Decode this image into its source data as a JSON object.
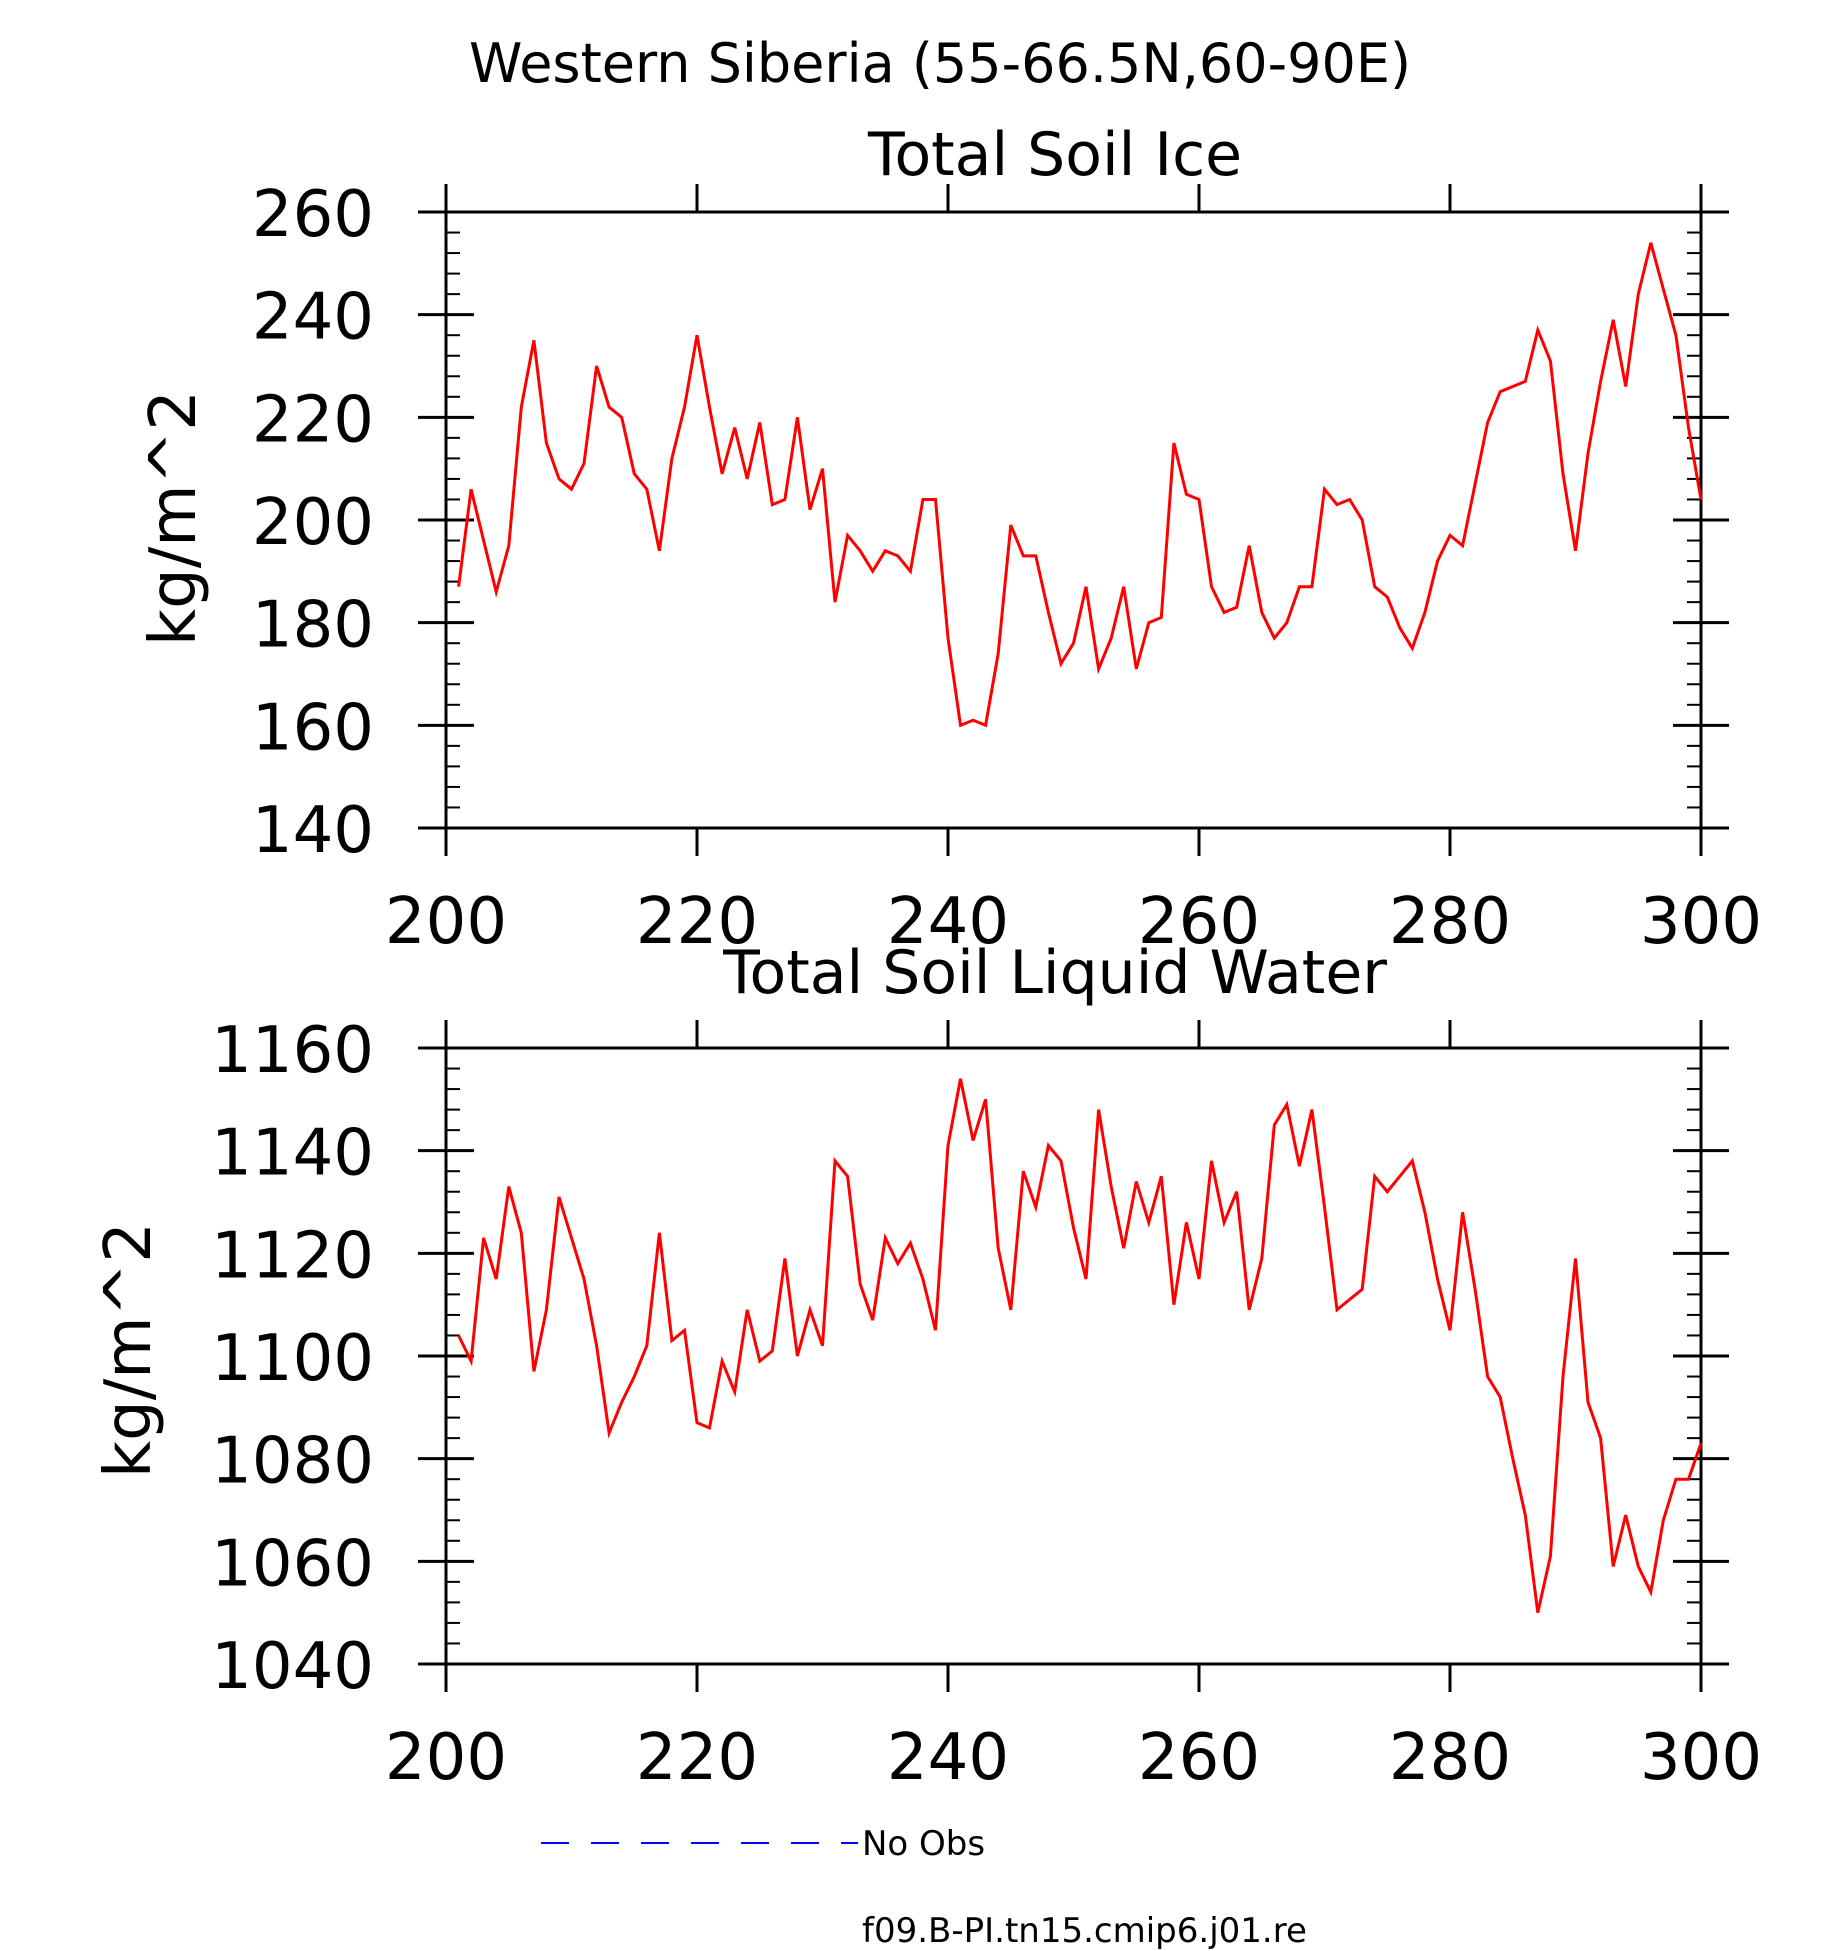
{
  "figure": {
    "title": "Western Siberia (55-66.5N,60-90E)"
  },
  "legend": {
    "entries": [
      {
        "label": "No Obs",
        "color": "#0000ff",
        "style": "dashed"
      },
      {
        "label": "f09.B-PI.tn15.cmip6.j01.re",
        "color": "#ff0000",
        "style": "solid"
      }
    ]
  },
  "chart_data": [
    {
      "type": "line",
      "title": "Total Soil Ice",
      "xlabel": "",
      "ylabel": "kg/m^2",
      "xlim": [
        200,
        300
      ],
      "ylim": [
        140,
        260
      ],
      "xticks": [
        200,
        220,
        240,
        260,
        280,
        300
      ],
      "yticks": [
        140,
        160,
        180,
        200,
        220,
        240,
        260
      ],
      "grid": false,
      "series": [
        {
          "name": "f09.B-PI.tn15.cmip6.j01.re",
          "color": "#ff0000",
          "x": [
            201,
            202,
            203,
            204,
            205,
            206,
            207,
            208,
            209,
            210,
            211,
            212,
            213,
            214,
            215,
            216,
            217,
            218,
            219,
            220,
            221,
            222,
            223,
            224,
            225,
            226,
            227,
            228,
            229,
            230,
            231,
            232,
            233,
            234,
            235,
            236,
            237,
            238,
            239,
            240,
            241,
            242,
            243,
            244,
            245,
            246,
            247,
            248,
            249,
            250,
            251,
            252,
            253,
            254,
            255,
            256,
            257,
            258,
            259,
            260,
            261,
            262,
            263,
            264,
            265,
            266,
            267,
            268,
            269,
            270,
            271,
            272,
            273,
            274,
            275,
            276,
            277,
            278,
            279,
            280,
            281,
            282,
            283,
            284,
            285,
            286,
            287,
            288,
            289,
            290,
            291,
            292,
            293,
            294,
            295,
            296,
            297,
            298,
            299,
            300
          ],
          "values": [
            187,
            206,
            196,
            186,
            195,
            222,
            235,
            215,
            208,
            206,
            211,
            230,
            222,
            220,
            209,
            206,
            194,
            212,
            222,
            236,
            222,
            209,
            218,
            208,
            219,
            203,
            204,
            220,
            202,
            210,
            184,
            197,
            194,
            190,
            194,
            193,
            190,
            204,
            204,
            177,
            160,
            161,
            160,
            174,
            199,
            193,
            193,
            182,
            172,
            176,
            187,
            171,
            177,
            187,
            171,
            180,
            181,
            215,
            205,
            204,
            187,
            182,
            183,
            195,
            182,
            177,
            180,
            187,
            187,
            206,
            203,
            204,
            200,
            187,
            185,
            179,
            175,
            182,
            192,
            197,
            195,
            207,
            219,
            225,
            226,
            227,
            237,
            231,
            209,
            194,
            213,
            227,
            239,
            226,
            244,
            254,
            245,
            236,
            218,
            204
          ]
        }
      ]
    },
    {
      "type": "line",
      "title": "Total Soil Liquid Water",
      "xlabel": "",
      "ylabel": "kg/m^2",
      "xlim": [
        200,
        300
      ],
      "ylim": [
        1040,
        1160
      ],
      "xticks": [
        200,
        220,
        240,
        260,
        280,
        300
      ],
      "yticks": [
        1040,
        1060,
        1080,
        1100,
        1120,
        1140,
        1160
      ],
      "grid": false,
      "series": [
        {
          "name": "f09.B-PI.tn15.cmip6.j01.re",
          "color": "#ff0000",
          "x": [
            201,
            202,
            203,
            204,
            205,
            206,
            207,
            208,
            209,
            210,
            211,
            212,
            213,
            214,
            215,
            216,
            217,
            218,
            219,
            220,
            221,
            222,
            223,
            224,
            225,
            226,
            227,
            228,
            229,
            230,
            231,
            232,
            233,
            234,
            235,
            236,
            237,
            238,
            239,
            240,
            241,
            242,
            243,
            244,
            245,
            246,
            247,
            248,
            249,
            250,
            251,
            252,
            253,
            254,
            255,
            256,
            257,
            258,
            259,
            260,
            261,
            262,
            263,
            264,
            265,
            266,
            267,
            268,
            269,
            270,
            271,
            272,
            273,
            274,
            275,
            276,
            277,
            278,
            279,
            280,
            281,
            282,
            283,
            284,
            285,
            286,
            287,
            288,
            289,
            290,
            291,
            292,
            293,
            294,
            295,
            296,
            297,
            298,
            299,
            300
          ],
          "values": [
            1104,
            1099,
            1123,
            1115,
            1133,
            1124,
            1097,
            1109,
            1131,
            1123,
            1115,
            1102,
            1085,
            1091,
            1096,
            1102,
            1124,
            1103,
            1105,
            1087,
            1086,
            1099,
            1093,
            1109,
            1099,
            1101,
            1119,
            1100,
            1109,
            1102,
            1138,
            1135,
            1114,
            1107,
            1123,
            1118,
            1122,
            1115,
            1105,
            1141,
            1154,
            1142,
            1150,
            1121,
            1109,
            1136,
            1129,
            1141,
            1138,
            1125,
            1115,
            1148,
            1133,
            1121,
            1134,
            1126,
            1135,
            1110,
            1126,
            1115,
            1138,
            1126,
            1132,
            1109,
            1119,
            1145,
            1149,
            1137,
            1148,
            1129,
            1109,
            1111,
            1113,
            1135,
            1132,
            1135,
            1138,
            1128,
            1115,
            1105,
            1128,
            1113,
            1096,
            1092,
            1080,
            1069,
            1050,
            1061,
            1096,
            1119,
            1091,
            1084,
            1059,
            1069,
            1059,
            1054,
            1068,
            1076,
            1076,
            1083
          ]
        }
      ]
    }
  ]
}
